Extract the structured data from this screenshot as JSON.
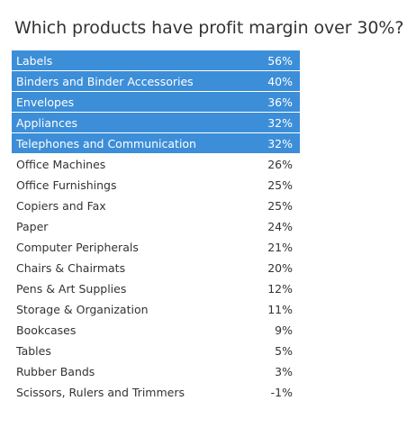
{
  "title": "Which products have profit margin over 30%?",
  "chart_data": {
    "type": "table",
    "title": "Which products have profit margin over 30%?",
    "threshold_percent": 30,
    "highlight_color": "#3d8ed8",
    "rows": [
      {
        "category": "Labels",
        "margin": "56%",
        "value": 56
      },
      {
        "category": "Binders and Binder Accessories",
        "margin": "40%",
        "value": 40
      },
      {
        "category": "Envelopes",
        "margin": "36%",
        "value": 36
      },
      {
        "category": "Appliances",
        "margin": "32%",
        "value": 32
      },
      {
        "category": "Telephones and Communication",
        "margin": "32%",
        "value": 32
      },
      {
        "category": "Office Machines",
        "margin": "26%",
        "value": 26
      },
      {
        "category": "Office Furnishings",
        "margin": "25%",
        "value": 25
      },
      {
        "category": "Copiers and Fax",
        "margin": "25%",
        "value": 25
      },
      {
        "category": "Paper",
        "margin": "24%",
        "value": 24
      },
      {
        "category": "Computer Peripherals",
        "margin": "21%",
        "value": 21
      },
      {
        "category": "Chairs & Chairmats",
        "margin": "20%",
        "value": 20
      },
      {
        "category": "Pens & Art Supplies",
        "margin": "12%",
        "value": 12
      },
      {
        "category": "Storage & Organization",
        "margin": "11%",
        "value": 11
      },
      {
        "category": "Bookcases",
        "margin": "9%",
        "value": 9
      },
      {
        "category": "Tables",
        "margin": "5%",
        "value": 5
      },
      {
        "category": "Rubber Bands",
        "margin": "3%",
        "value": 3
      },
      {
        "category": "Scissors, Rulers and Trimmers",
        "margin": "-1%",
        "value": -1
      }
    ]
  }
}
